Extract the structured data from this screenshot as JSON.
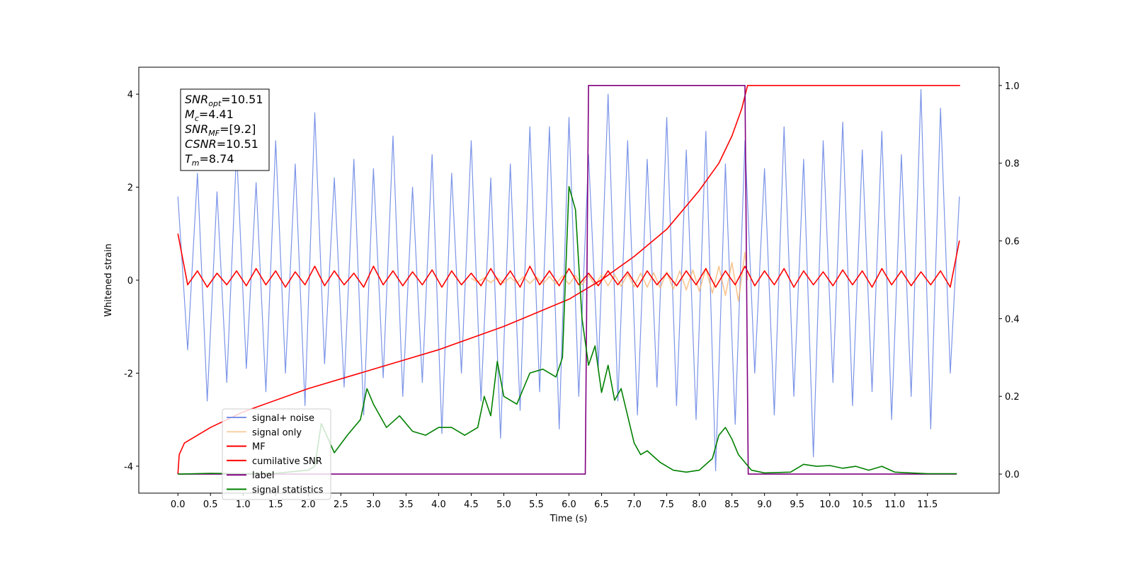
{
  "chart_data": {
    "type": "line",
    "xlabel": "Time (s)",
    "ylabel": "Whitened strain",
    "xlim": [
      -0.6,
      12.6
    ],
    "ylim": [
      -4.58,
      4.58
    ],
    "y2lim": [
      -0.049,
      1.047
    ],
    "xticks": [
      {
        "value": 0,
        "label": "0.0"
      },
      0.5,
      {
        "value": 1,
        "label": "1.0"
      },
      1.5,
      {
        "value": 2,
        "label": "2.0"
      },
      2.5,
      {
        "value": 3,
        "label": "3.0"
      },
      3.5,
      {
        "value": 4,
        "label": "4.0"
      },
      4.5,
      {
        "value": 5,
        "label": "5.0"
      },
      5.5,
      {
        "value": 6,
        "label": "6.0"
      },
      6.5,
      {
        "value": 7,
        "label": "7.0"
      },
      7.5,
      {
        "value": 8,
        "label": "8.0"
      },
      8.5,
      {
        "value": 9,
        "label": "9.0"
      },
      9.5,
      {
        "value": 10,
        "label": "10.0"
      },
      10.5,
      {
        "value": 11,
        "label": "11.0"
      },
      11.5
    ],
    "yticks": [
      -4,
      -2,
      0,
      2,
      4
    ],
    "y2ticks": [
      {
        "value": 0,
        "label": "0.0"
      },
      0.2,
      0.4,
      0.6,
      0.8,
      {
        "value": 1,
        "label": "1.0"
      }
    ],
    "grid": false,
    "legend": "lower left",
    "annotation": [
      {
        "name": "SNR",
        "sub": "opt",
        "text": "=10.51"
      },
      {
        "name": "M",
        "sub": "c",
        "text": "=4.41"
      },
      {
        "name": "SNR",
        "sub": "MF",
        "text": "=[9.2]"
      },
      {
        "name": "CSNR",
        "text": "=10.51"
      },
      {
        "name": "T",
        "sub": "m",
        "text": "=8.74"
      }
    ],
    "series": [
      {
        "name": "signal+ noise",
        "color": "#7b94e8",
        "x": [
          0,
          0.15,
          0.3,
          0.45,
          0.6,
          0.75,
          0.9,
          1.05,
          1.2,
          1.35,
          1.5,
          1.65,
          1.8,
          1.95,
          2.1,
          2.25,
          2.4,
          2.55,
          2.7,
          2.85,
          3.0,
          3.15,
          3.3,
          3.45,
          3.6,
          3.75,
          3.9,
          4.05,
          4.2,
          4.35,
          4.5,
          4.65,
          4.8,
          4.95,
          5.1,
          5.25,
          5.4,
          5.55,
          5.7,
          5.85,
          6.0,
          6.15,
          6.3,
          6.45,
          6.6,
          6.75,
          6.9,
          7.05,
          7.2,
          7.35,
          7.5,
          7.65,
          7.8,
          7.95,
          8.1,
          8.25,
          8.4,
          8.55,
          8.7,
          8.85,
          9.0,
          9.15,
          9.3,
          9.45,
          9.6,
          9.75,
          9.9,
          10.05,
          10.2,
          10.35,
          10.5,
          10.65,
          10.8,
          10.95,
          11.1,
          11.25,
          11.4,
          11.55,
          11.7,
          11.85,
          11.99
        ],
        "values": [
          1.8,
          -1.5,
          2.3,
          -2.6,
          1.9,
          -2.2,
          2.8,
          -1.9,
          2.1,
          -2.4,
          3.0,
          -2.0,
          2.5,
          -2.7,
          3.6,
          -1.8,
          2.2,
          -2.3,
          2.6,
          -2.9,
          2.4,
          -2.1,
          3.1,
          -2.5,
          2.0,
          -2.2,
          2.7,
          -3.3,
          2.3,
          -2.0,
          3.0,
          -2.6,
          2.2,
          -3.4,
          2.5,
          -2.8,
          3.3,
          -2.4,
          3.3,
          -3.2,
          3.5,
          -2.5,
          2.7,
          -1.9,
          4.0,
          -2.6,
          3.0,
          -2.9,
          2.6,
          -2.3,
          3.5,
          -2.7,
          2.8,
          -3.0,
          3.2,
          -4.1,
          2.5,
          -3.1,
          3.0,
          -2.0,
          2.4,
          -2.9,
          3.3,
          -2.5,
          2.6,
          -3.8,
          3.0,
          -2.2,
          3.4,
          -2.7,
          2.8,
          -2.4,
          3.2,
          -3.0,
          2.7,
          -2.5,
          4.1,
          -3.2,
          3.7,
          -2.0,
          1.8
        ]
      },
      {
        "name": "signal only",
        "color": "#f5b26b",
        "x": [
          4.5,
          4.6,
          4.7,
          4.8,
          4.9,
          5.0,
          5.1,
          5.2,
          5.3,
          5.4,
          5.5,
          5.6,
          5.7,
          5.8,
          5.9,
          6.0,
          6.1,
          6.2,
          6.3,
          6.4,
          6.5,
          6.6,
          6.7,
          6.8,
          6.9,
          7.0,
          7.1,
          7.2,
          7.3,
          7.4,
          7.5,
          7.6,
          7.7,
          7.8,
          7.9,
          8.0,
          8.1,
          8.2,
          8.3,
          8.4,
          8.5,
          8.6,
          8.7,
          8.74
        ],
        "values": [
          0.04,
          -0.04,
          0.05,
          -0.05,
          0.05,
          -0.06,
          0.06,
          -0.06,
          0.07,
          -0.07,
          0.07,
          -0.08,
          0.08,
          -0.08,
          0.09,
          -0.09,
          0.1,
          -0.1,
          0.1,
          -0.11,
          0.11,
          -0.12,
          0.12,
          -0.13,
          0.13,
          -0.14,
          0.15,
          -0.15,
          0.16,
          -0.17,
          0.18,
          -0.19,
          0.2,
          -0.21,
          0.22,
          -0.24,
          0.26,
          -0.28,
          0.3,
          -0.33,
          0.38,
          -0.45,
          0.6,
          0
        ]
      },
      {
        "name": "MF",
        "color": "#ff0000",
        "x": [
          0,
          0.15,
          0.3,
          0.45,
          0.6,
          0.75,
          0.9,
          1.05,
          1.2,
          1.35,
          1.5,
          1.65,
          1.8,
          1.95,
          2.1,
          2.25,
          2.4,
          2.55,
          2.7,
          2.85,
          3.0,
          3.15,
          3.3,
          3.45,
          3.6,
          3.75,
          3.9,
          4.05,
          4.2,
          4.35,
          4.5,
          4.65,
          4.8,
          4.95,
          5.1,
          5.25,
          5.4,
          5.55,
          5.7,
          5.85,
          6.0,
          6.15,
          6.3,
          6.45,
          6.6,
          6.75,
          6.9,
          7.05,
          7.2,
          7.35,
          7.5,
          7.65,
          7.8,
          7.95,
          8.1,
          8.25,
          8.4,
          8.55,
          8.7,
          8.85,
          9.0,
          9.15,
          9.3,
          9.45,
          9.6,
          9.75,
          9.9,
          10.05,
          10.2,
          10.35,
          10.5,
          10.65,
          10.8,
          10.95,
          11.1,
          11.25,
          11.4,
          11.55,
          11.7,
          11.85,
          11.99
        ],
        "values": [
          1.0,
          -0.1,
          0.2,
          -0.15,
          0.15,
          -0.1,
          0.2,
          -0.12,
          0.25,
          -0.1,
          0.2,
          -0.15,
          0.18,
          -0.1,
          0.3,
          -0.12,
          0.2,
          -0.1,
          0.15,
          -0.15,
          0.3,
          -0.1,
          0.2,
          -0.12,
          0.18,
          -0.1,
          0.22,
          -0.15,
          0.2,
          -0.1,
          0.15,
          -0.12,
          0.25,
          -0.1,
          0.2,
          -0.15,
          0.3,
          -0.1,
          0.2,
          -0.12,
          0.25,
          -0.1,
          0.15,
          -0.12,
          0.2,
          -0.1,
          0.18,
          -0.15,
          0.2,
          -0.1,
          0.15,
          -0.12,
          0.2,
          -0.1,
          0.25,
          -0.15,
          0.2,
          -0.1,
          0.3,
          -0.12,
          0.2,
          -0.1,
          0.25,
          -0.15,
          0.2,
          -0.1,
          0.18,
          -0.12,
          0.22,
          -0.1,
          0.2,
          -0.15,
          0.25,
          -0.1,
          0.2,
          -0.12,
          0.18,
          -0.1,
          0.2,
          -0.15,
          0.85
        ]
      },
      {
        "name": "cumilative SNR",
        "color": "#ff0000",
        "axis": "y2",
        "x": [
          0,
          0.02,
          0.1,
          0.5,
          1,
          2,
          3,
          4,
          5,
          6,
          6.5,
          7,
          7.5,
          8,
          8.3,
          8.5,
          8.65,
          8.74,
          12
        ],
        "values": [
          0,
          0.05,
          0.08,
          0.12,
          0.16,
          0.22,
          0.27,
          0.32,
          0.38,
          0.45,
          0.5,
          0.56,
          0.63,
          0.73,
          0.8,
          0.87,
          0.94,
          1.0,
          1.0
        ]
      },
      {
        "name": "label",
        "color": "#800080",
        "axis": "y2",
        "x": [
          0,
          6.25,
          6.3,
          8.7,
          8.75,
          11.95
        ],
        "values": [
          0,
          0,
          1,
          1,
          0,
          0
        ]
      },
      {
        "name": "signal statistics",
        "color": "#008000",
        "axis": "y2",
        "x": [
          0,
          0.5,
          1,
          1.5,
          2,
          2.1,
          2.2,
          2.4,
          2.6,
          2.8,
          2.9,
          3.0,
          3.2,
          3.4,
          3.6,
          3.8,
          4.0,
          4.2,
          4.4,
          4.6,
          4.7,
          4.8,
          4.9,
          5.0,
          5.2,
          5.4,
          5.6,
          5.8,
          5.9,
          6.0,
          6.1,
          6.2,
          6.3,
          6.4,
          6.5,
          6.6,
          6.7,
          6.8,
          6.9,
          7.0,
          7.1,
          7.2,
          7.4,
          7.6,
          7.8,
          8.0,
          8.2,
          8.3,
          8.4,
          8.5,
          8.6,
          8.8,
          9.0,
          9.4,
          9.6,
          9.8,
          10.0,
          10.2,
          10.4,
          10.6,
          10.8,
          11.0,
          11.5,
          11.95
        ],
        "values": [
          0,
          0.002,
          0.001,
          0.002,
          0.01,
          0.02,
          0.13,
          0.055,
          0.1,
          0.14,
          0.22,
          0.18,
          0.12,
          0.15,
          0.11,
          0.1,
          0.12,
          0.12,
          0.1,
          0.12,
          0.2,
          0.15,
          0.29,
          0.2,
          0.18,
          0.26,
          0.27,
          0.25,
          0.3,
          0.74,
          0.68,
          0.4,
          0.28,
          0.33,
          0.21,
          0.28,
          0.19,
          0.22,
          0.15,
          0.08,
          0.05,
          0.06,
          0.03,
          0.01,
          0.005,
          0.01,
          0.04,
          0.1,
          0.12,
          0.09,
          0.05,
          0.01,
          0.003,
          0.005,
          0.025,
          0.02,
          0.022,
          0.015,
          0.02,
          0.01,
          0.02,
          0.005,
          0.001,
          0.001
        ]
      }
    ]
  }
}
